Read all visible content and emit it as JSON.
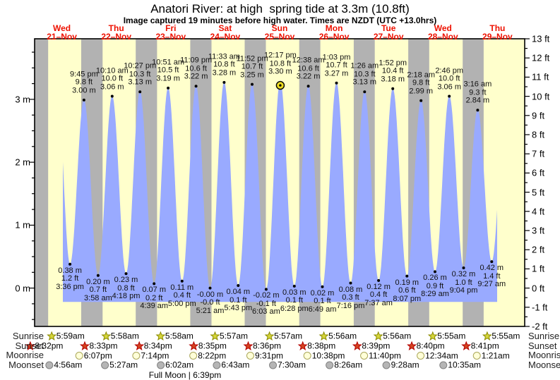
{
  "header": {
    "title": "Anatori River: at high  spring tide at 3.3m (10.8ft)",
    "subtitle": "Image captured 19 minutes before high water. Times are NZDT (UTC +13.0hrs)"
  },
  "colors": {
    "day_band": "#ffffcc",
    "night_band": "#b2b2b2",
    "tide_fill": "#99aaff",
    "day_label_red": "#ee1100",
    "marker_yellow": "#eedd22",
    "sunrise_star_fill": "#d6d63a",
    "sunrise_star_stroke": "#8a8a00",
    "sunset_star_fill": "#d4431f",
    "sunset_star_stroke": "#b30000",
    "moonrise_fill": "#ffffd8",
    "moonrise_stroke": "#aaa65a",
    "moonset_fill": "#b5b5b5",
    "moonset_stroke": "#808080"
  },
  "chart_data": {
    "type": "area",
    "title": "Anatori River: at high  spring tide at 3.3m (10.8ft)",
    "x_axis": {
      "unit": "days",
      "start_day_index": 0,
      "num_days": 9
    },
    "days": [
      {
        "dow": "Wed",
        "date": "21–Nov"
      },
      {
        "dow": "Thu",
        "date": "22–Nov"
      },
      {
        "dow": "Fri",
        "date": "23–Nov"
      },
      {
        "dow": "Sat",
        "date": "24–Nov"
      },
      {
        "dow": "Sun",
        "date": "25–Nov"
      },
      {
        "dow": "Mon",
        "date": "26–Nov"
      },
      {
        "dow": "Tue",
        "date": "27–Nov"
      },
      {
        "dow": "Wed",
        "date": "28–Nov"
      },
      {
        "dow": "Thu",
        "date": "29–Nov"
      }
    ],
    "y_left": {
      "unit": "m",
      "labeled_ticks": [
        0,
        1,
        2,
        3
      ],
      "minor_step": 0.25,
      "minor_range": [
        -0.5,
        3.75
      ]
    },
    "y_right": {
      "unit": "ft",
      "labeled_ticks": [
        -2,
        -1,
        0,
        1,
        2,
        3,
        4,
        5,
        6,
        7,
        8,
        9,
        10,
        11,
        12,
        13
      ],
      "minor_step": 0.5
    },
    "y_range_ft": [
      -2,
      13
    ],
    "grid": false,
    "baseline_m": -0.22,
    "data_t_range": [
      0.519,
      8.494
    ],
    "curve_pre": {
      "t": 0.42,
      "m_val": 3.05
    },
    "curve_post": {
      "t": 8.656,
      "m_val": 3.0
    },
    "highs": [
      {
        "t": 0.90625,
        "m_val": 3.0,
        "time": "9:45 pm",
        "ft": "9.8 ft",
        "m": "3.00 m"
      },
      {
        "t": 1.42361,
        "m_val": 3.06,
        "time": "10:10 am",
        "ft": "10.0 ft",
        "m": "3.06 m"
      },
      {
        "t": 1.93542,
        "m_val": 3.13,
        "time": "10:27 pm",
        "ft": "10.3 ft",
        "m": "3.13 m"
      },
      {
        "t": 2.45208,
        "m_val": 3.19,
        "time": "10:51 am",
        "ft": "10.5 ft",
        "m": "3.19 m"
      },
      {
        "t": 2.96458,
        "m_val": 3.22,
        "time": "11:09 pm",
        "ft": "10.6 ft",
        "m": "3.22 m"
      },
      {
        "t": 3.48125,
        "m_val": 3.28,
        "time": "11:33 am",
        "ft": "10.8 ft",
        "m": "3.28 m"
      },
      {
        "t": 3.99444,
        "m_val": 3.25,
        "time": "11:52 pm",
        "ft": "10.7 ft",
        "m": "3.25 m"
      },
      {
        "t": 4.51181,
        "m_val": 3.3,
        "time": "12:17 pm",
        "ft": "10.8 ft",
        "m": "3.30 m"
      },
      {
        "t": 5.02639,
        "m_val": 3.22,
        "time": "12:38 am",
        "ft": "10.6 ft",
        "m": "3.22 m"
      },
      {
        "t": 5.54375,
        "m_val": 3.27,
        "time": "1:03 pm",
        "ft": "10.7 ft",
        "m": "3.27 m"
      },
      {
        "t": 6.05972,
        "m_val": 3.13,
        "time": "1:26 am",
        "ft": "10.3 ft",
        "m": "3.13 m"
      },
      {
        "t": 6.57778,
        "m_val": 3.18,
        "time": "1:52 pm",
        "ft": "10.4 ft",
        "m": "3.18 m"
      },
      {
        "t": 7.09583,
        "m_val": 2.99,
        "time": "2:18 am",
        "ft": "9.8 ft",
        "m": "2.99 m"
      },
      {
        "t": 7.61528,
        "m_val": 3.06,
        "time": "2:46 pm",
        "ft": "10.0 ft",
        "m": "3.06 m"
      },
      {
        "t": 8.13611,
        "m_val": 2.84,
        "time": "3:16 am",
        "ft": "9.3 ft",
        "m": "2.84 m"
      }
    ],
    "lows": [
      {
        "t": 0.65,
        "m_val": 0.38,
        "m": "0.38 m",
        "ft": "1.2 ft",
        "time": "3:36 pm"
      },
      {
        "t": 1.16528,
        "m_val": 0.2,
        "m": "0.20 m",
        "ft": "0.7 ft",
        "time": "3:58 am"
      },
      {
        "t": 1.67917,
        "m_val": 0.23,
        "m": "0.23 m",
        "ft": "0.8 ft",
        "time": "4:18 pm"
      },
      {
        "t": 2.19375,
        "m_val": 0.07,
        "m": "0.07 m",
        "ft": "0.2 ft",
        "time": "4:39 am"
      },
      {
        "t": 2.70833,
        "m_val": 0.11,
        "m": "0.11 m",
        "ft": "0.4 ft",
        "time": "5:00 pm"
      },
      {
        "t": 3.22292,
        "m_val": 0.0,
        "m": "-0.00 m",
        "ft": "-0.0 ft",
        "time": "5:21 am"
      },
      {
        "t": 3.73819,
        "m_val": 0.04,
        "m": "0.04 m",
        "ft": "0.1 ft",
        "time": "5:43 pm"
      },
      {
        "t": 4.25208,
        "m_val": -0.02,
        "m": "-0.02 m",
        "ft": "-0.1 ft",
        "time": "6:03 am"
      },
      {
        "t": 4.76944,
        "m_val": 0.03,
        "m": "0.03 m",
        "ft": "0.1 ft",
        "time": "6:28 pm"
      },
      {
        "t": 5.28403,
        "m_val": 0.02,
        "m": "0.02 m",
        "ft": "0.1 ft",
        "time": "6:49 am"
      },
      {
        "t": 5.80278,
        "m_val": 0.08,
        "m": "0.08 m",
        "ft": "0.3 ft",
        "time": "7:16 pm"
      },
      {
        "t": 6.31736,
        "m_val": 0.12,
        "m": "0.12 m",
        "ft": "0.4 ft",
        "time": "7:37 am"
      },
      {
        "t": 6.83819,
        "m_val": 0.19,
        "m": "0.19 m",
        "ft": "0.6 ft",
        "time": "8:07 pm"
      },
      {
        "t": 7.35347,
        "m_val": 0.26,
        "m": "0.26 m",
        "ft": "0.9 ft",
        "time": "8:29 am"
      },
      {
        "t": 7.87778,
        "m_val": 0.32,
        "m": "0.32 m",
        "ft": "1.0 ft",
        "time": "9:04 pm"
      },
      {
        "t": 8.39375,
        "m_val": 0.42,
        "m": "0.42 m",
        "ft": "1.4 ft",
        "time": "9:27 am"
      }
    ],
    "current_marker": {
      "high_index": 7,
      "note": "19 minutes before high water"
    },
    "night_bands": [
      [
        0.0,
        0.249306
      ],
      [
        0.85625,
        1.248611
      ],
      [
        1.856944,
        2.248611
      ],
      [
        2.857639,
        3.247917
      ],
      [
        3.858333,
        4.247917
      ],
      [
        4.859722,
        5.247222
      ],
      [
        5.860417,
        6.247222
      ],
      [
        6.861111,
        7.246528
      ],
      [
        7.861806,
        8.246528
      ]
    ]
  },
  "astro": {
    "rows": [
      {
        "label": "Sunrise",
        "icon": "sunrise-star",
        "events": [
          {
            "t": 0.249306,
            "label": "5:59am"
          },
          {
            "t": 1.248611,
            "label": "5:58am"
          },
          {
            "t": 2.248611,
            "label": "5:58am"
          },
          {
            "t": 3.247917,
            "label": "5:57am"
          },
          {
            "t": 4.247917,
            "label": "5:57am"
          },
          {
            "t": 5.247222,
            "label": "5:56am"
          },
          {
            "t": 6.247222,
            "label": "5:56am"
          },
          {
            "t": 7.246528,
            "label": "5:55am"
          },
          {
            "t": 8.246528,
            "label": "5:55am"
          }
        ]
      },
      {
        "label": "Sunset",
        "icon": "sunset-star",
        "events": [
          {
            "t": -0.144444,
            "label": "8:32pm"
          },
          {
            "t": 0.85625,
            "label": "8:33pm"
          },
          {
            "t": 1.856944,
            "label": "8:34pm"
          },
          {
            "t": 2.857639,
            "label": "8:35pm"
          },
          {
            "t": 3.858333,
            "label": "8:36pm"
          },
          {
            "t": 4.859722,
            "label": "8:38pm"
          },
          {
            "t": 5.860417,
            "label": "8:39pm"
          },
          {
            "t": 6.861111,
            "label": "8:40pm"
          },
          {
            "t": 7.861806,
            "label": "8:41pm"
          }
        ]
      },
      {
        "label": "Moonrise",
        "icon": "moonrise-circle",
        "events": [
          {
            "t": 0.754861,
            "label": "6:07pm"
          },
          {
            "t": 1.801389,
            "label": "7:14pm"
          },
          {
            "t": 2.848611,
            "label": "8:22pm"
          },
          {
            "t": 3.896528,
            "label": "9:31pm"
          },
          {
            "t": 4.943056,
            "label": "10:38pm"
          },
          {
            "t": 5.986111,
            "label": "11:40pm"
          },
          {
            "t": 7.023611,
            "label": "12:34am"
          },
          {
            "t": 8.05625,
            "label": "1:21am"
          }
        ]
      },
      {
        "label": "Moonset",
        "icon": "moonset-circle",
        "events": [
          {
            "t": 0.205556,
            "label": "4:56am"
          },
          {
            "t": 1.227083,
            "label": "5:27am"
          },
          {
            "t": 2.251389,
            "label": "6:02am"
          },
          {
            "t": 3.279861,
            "label": "6:43am"
          },
          {
            "t": 4.3125,
            "label": "7:30am"
          },
          {
            "t": 5.351389,
            "label": "8:26am"
          },
          {
            "t": 6.394444,
            "label": "9:28am"
          },
          {
            "t": 7.440972,
            "label": "10:35am"
          }
        ]
      }
    ],
    "full_moon": "Full Moon | 6:39pm"
  }
}
